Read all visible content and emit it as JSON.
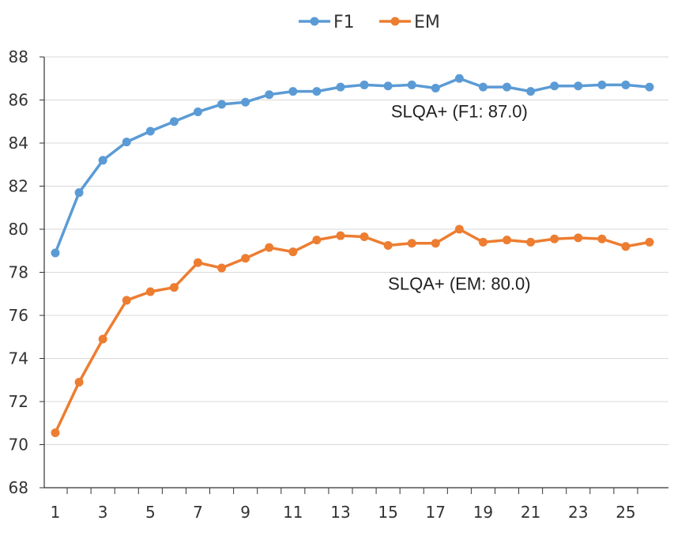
{
  "chart_data": {
    "type": "line",
    "title": "",
    "xlabel": "",
    "ylabel": "",
    "x": [
      1,
      2,
      3,
      4,
      5,
      6,
      7,
      8,
      9,
      10,
      11,
      12,
      13,
      14,
      15,
      16,
      17,
      18,
      19,
      20,
      21,
      22,
      23,
      24,
      25,
      26
    ],
    "xlim": [
      1,
      26
    ],
    "xticks": [
      1,
      3,
      5,
      7,
      9,
      11,
      13,
      15,
      17,
      19,
      21,
      23,
      25
    ],
    "ylim": [
      68,
      88
    ],
    "yticks": [
      68,
      70,
      72,
      74,
      76,
      78,
      80,
      82,
      84,
      86,
      88
    ],
    "grid": "horizontal",
    "legend_position": "top-center",
    "series": [
      {
        "name": "F1",
        "color": "#5B9BD5",
        "values": [
          78.9,
          81.7,
          83.2,
          84.05,
          84.55,
          85.0,
          85.45,
          85.8,
          85.9,
          86.25,
          86.4,
          86.4,
          86.6,
          86.7,
          86.65,
          86.7,
          86.55,
          87.0,
          86.6,
          86.6,
          86.4,
          86.65,
          86.65,
          86.7,
          86.7,
          86.6
        ]
      },
      {
        "name": "EM",
        "color": "#ED7D31",
        "values": [
          70.55,
          72.9,
          74.9,
          76.7,
          77.1,
          77.3,
          78.45,
          78.2,
          78.65,
          79.15,
          78.95,
          79.5,
          79.7,
          79.65,
          79.25,
          79.35,
          79.35,
          80.0,
          79.4,
          79.5,
          79.4,
          79.55,
          79.6,
          79.55,
          79.2,
          79.4
        ]
      }
    ],
    "annotations": [
      {
        "text": "SLQA+ (F1: 87.0)",
        "x": 18,
        "y": 85.2
      },
      {
        "text": "SLQA+ (EM: 80.0)",
        "x": 18,
        "y": 77.2
      }
    ]
  }
}
